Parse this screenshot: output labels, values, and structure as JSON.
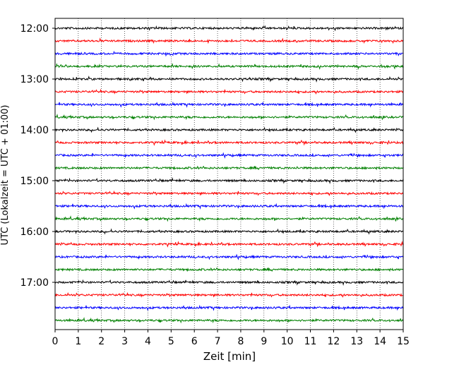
{
  "chart_data": {
    "type": "line",
    "title": "",
    "xlabel": "Zeit  [min]",
    "ylabel": "UTC (Lokalzeit = UTC + 01:00)",
    "xlim": [
      0,
      15
    ],
    "x_ticks": [
      "0",
      "1",
      "2",
      "3",
      "4",
      "5",
      "6",
      "7",
      "8",
      "9",
      "10",
      "11",
      "12",
      "13",
      "14",
      "15"
    ],
    "y_ticks": [
      "12:00",
      "13:00",
      "14:00",
      "15:00",
      "16:00",
      "17:00"
    ],
    "grid": "vertical dotted",
    "trace_interval_minutes": 15,
    "trace_colors": [
      "#000000",
      "#ff0000",
      "#0000ff",
      "#008000"
    ],
    "series": [
      {
        "start": "12:00",
        "values": [
          0
        ]
      },
      {
        "start": "12:15",
        "values": [
          0
        ]
      },
      {
        "start": "12:30",
        "values": [
          0
        ]
      },
      {
        "start": "12:45",
        "values": [
          0
        ]
      },
      {
        "start": "13:00",
        "values": [
          0
        ]
      },
      {
        "start": "13:15",
        "values": [
          0
        ]
      },
      {
        "start": "13:30",
        "values": [
          0
        ]
      },
      {
        "start": "13:45",
        "values": [
          0
        ]
      },
      {
        "start": "14:00",
        "values": [
          0
        ]
      },
      {
        "start": "14:15",
        "values": [
          0
        ]
      },
      {
        "start": "14:30",
        "values": [
          0
        ]
      },
      {
        "start": "14:45",
        "values": [
          0
        ]
      },
      {
        "start": "15:00",
        "values": [
          0
        ]
      },
      {
        "start": "15:15",
        "values": [
          0
        ]
      },
      {
        "start": "15:30",
        "values": [
          0
        ]
      },
      {
        "start": "15:45",
        "values": [
          0
        ]
      },
      {
        "start": "16:00",
        "values": [
          0
        ]
      },
      {
        "start": "16:15",
        "values": [
          0
        ]
      },
      {
        "start": "16:30",
        "values": [
          0
        ]
      },
      {
        "start": "16:45",
        "values": [
          0
        ]
      },
      {
        "start": "17:00",
        "values": [
          0
        ]
      },
      {
        "start": "17:15",
        "values": [
          0
        ]
      },
      {
        "start": "17:30",
        "values": [
          0
        ]
      },
      {
        "start": "17:45",
        "values": [
          0
        ]
      }
    ]
  }
}
